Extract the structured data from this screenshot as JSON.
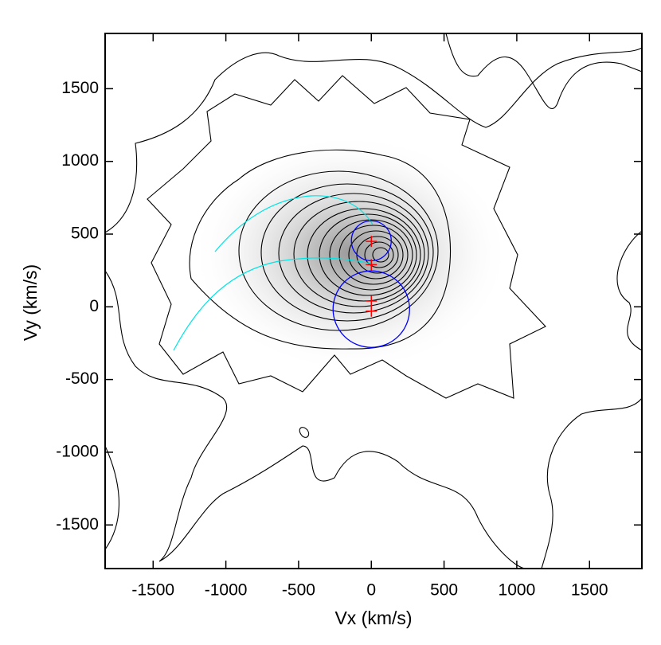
{
  "chart_data": {
    "type": "contour",
    "x_label": "Vx (km/s)",
    "y_label": "Vy (km/s)",
    "xlim": [
      -1830,
      1860
    ],
    "ylim": [
      -1800,
      1880
    ],
    "xticks": [
      -1500,
      -1000,
      -500,
      0,
      500,
      1000,
      1500
    ],
    "yticks": [
      -1500,
      -1000,
      -500,
      0,
      500,
      1000,
      1500
    ],
    "circles": [
      {
        "x": 0,
        "y": 454,
        "r": 137,
        "color": "#0000ff"
      },
      {
        "x": 0,
        "y": -16,
        "r": 263,
        "color": "#0000ff"
      }
    ],
    "markers": {
      "color": "#ff0000",
      "x": [
        0,
        0,
        0,
        0
      ],
      "y": [
        450,
        290,
        40,
        -30
      ]
    }
  }
}
